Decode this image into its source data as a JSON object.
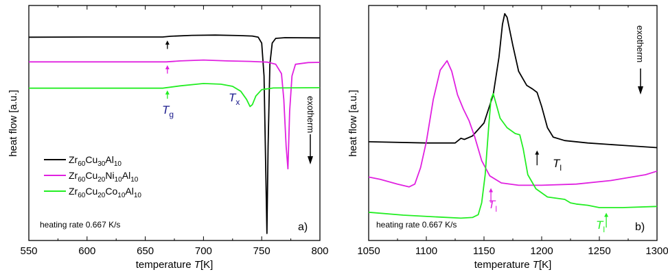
{
  "chart_data": [
    {
      "type": "line",
      "panel_label": "a)",
      "xlabel": "temperature T[K]",
      "ylabel": "heat flow [a.u.]",
      "xlim": [
        550,
        800
      ],
      "xticks": [
        "550",
        "600",
        "650",
        "700",
        "750",
        "800"
      ],
      "yticks": "none",
      "ylim": [
        0,
        100
      ],
      "legend_position": "lower-left",
      "annotation_rate": "heating rate 0.667 K/s",
      "label_Tg": "T",
      "label_Tg_sub": "g",
      "label_Tx": "T",
      "label_Tx_sub": "x",
      "exotherm_label": "exotherm",
      "series": [
        {
          "name": "Zr60Cu30Al10",
          "legend": [
            [
              "Zr",
              ""
            ],
            [
              "60",
              "sub"
            ],
            [
              "Cu",
              ""
            ],
            [
              "30",
              "sub"
            ],
            [
              "Al",
              ""
            ],
            [
              "10",
              "sub"
            ]
          ],
          "color": "#000000",
          "points": [
            [
              550,
              86.5
            ],
            [
              600,
              86.6
            ],
            [
              650,
              86.6
            ],
            [
              665,
              86.6
            ],
            [
              672,
              86.9
            ],
            [
              690,
              87.3
            ],
            [
              710,
              87.4
            ],
            [
              730,
              87.2
            ],
            [
              742,
              87.0
            ],
            [
              747,
              86.5
            ],
            [
              750,
              84.0
            ],
            [
              752,
              70.0
            ],
            [
              753.5,
              30.0
            ],
            [
              754.5,
              3.0
            ],
            [
              755.5,
              40.0
            ],
            [
              757,
              75.0
            ],
            [
              759,
              84.0
            ],
            [
              762,
              86.0
            ],
            [
              770,
              86.3
            ],
            [
              800,
              86.2
            ]
          ]
        },
        {
          "name": "Zr60Cu20Ni10Al10",
          "legend": [
            [
              "Zr",
              ""
            ],
            [
              "60",
              "sub"
            ],
            [
              "Cu",
              ""
            ],
            [
              "20",
              "sub"
            ],
            [
              "Ni",
              ""
            ],
            [
              "10",
              "sub"
            ],
            [
              "Al",
              ""
            ],
            [
              "10",
              "sub"
            ]
          ],
          "color": "#e020e0",
          "points": [
            [
              550,
              76.0
            ],
            [
              600,
              76.0
            ],
            [
              650,
              76.0
            ],
            [
              668,
              76.0
            ],
            [
              680,
              76.4
            ],
            [
              700,
              76.8
            ],
            [
              720,
              76.4
            ],
            [
              740,
              76.2
            ],
            [
              755,
              75.9
            ],
            [
              762,
              75.0
            ],
            [
              767,
              71.0
            ],
            [
              769,
              60.0
            ],
            [
              771,
              40.0
            ],
            [
              772.5,
              30.5
            ],
            [
              774,
              55.0
            ],
            [
              776,
              70.0
            ],
            [
              779,
              75.0
            ],
            [
              790,
              75.7
            ],
            [
              800,
              75.8
            ]
          ]
        },
        {
          "name": "Zr60Cu20Co10Al10",
          "legend": [
            [
              "Zr",
              ""
            ],
            [
              "60",
              "sub"
            ],
            [
              "Cu",
              ""
            ],
            [
              "20",
              "sub"
            ],
            [
              "Co",
              ""
            ],
            [
              "10",
              "sub"
            ],
            [
              "Al",
              ""
            ],
            [
              "10",
              "sub"
            ]
          ],
          "color": "#22ee22",
          "points": [
            [
              550,
              64.8
            ],
            [
              600,
              64.8
            ],
            [
              650,
              64.8
            ],
            [
              665,
              64.8
            ],
            [
              680,
              65.8
            ],
            [
              700,
              66.8
            ],
            [
              715,
              66.5
            ],
            [
              725,
              65.6
            ],
            [
              732,
              63.5
            ],
            [
              737,
              60.0
            ],
            [
              740,
              57.0
            ],
            [
              742,
              57.8
            ],
            [
              745,
              61.5
            ],
            [
              750,
              64.2
            ],
            [
              760,
              64.9
            ],
            [
              800,
              65.0
            ]
          ]
        }
      ],
      "markers": [
        {
          "x": 669,
          "y0": 81.5,
          "y1": 84.8,
          "color": "#000000"
        },
        {
          "x": 669,
          "y0": 71.0,
          "y1": 74.3,
          "color": "#e020e0"
        },
        {
          "x": 669,
          "y0": 60.3,
          "y1": 63.6,
          "color": "#22ee22"
        }
      ]
    },
    {
      "type": "line",
      "panel_label": "b)",
      "xlabel": "temperature T[K]",
      "ylabel": "heat flow [a.u.]",
      "xlim": [
        1050,
        1300
      ],
      "xticks": [
        "1050",
        "1100",
        "1150",
        "1200",
        "1250",
        "1300"
      ],
      "yticks": "none",
      "ylim": [
        0,
        100
      ],
      "annotation_rate": "heating rate 0.667 K/s",
      "label_Tl": "T",
      "label_Tl_sub": "l",
      "exotherm_label": "exotherm",
      "series": [
        {
          "name": "Zr60Cu30Al10",
          "color": "#000000",
          "points": [
            [
              1050,
              42.0
            ],
            [
              1100,
              41.5
            ],
            [
              1125,
              41.5
            ],
            [
              1130,
              43.5
            ],
            [
              1133,
              43.0
            ],
            [
              1140,
              44.5
            ],
            [
              1150,
              50.0
            ],
            [
              1158,
              62.0
            ],
            [
              1163,
              78.0
            ],
            [
              1166,
              92.0
            ],
            [
              1168,
              96.5
            ],
            [
              1170,
              95.0
            ],
            [
              1175,
              83.0
            ],
            [
              1180,
              72.0
            ],
            [
              1187,
              66.0
            ],
            [
              1192,
              64.5
            ],
            [
              1196,
              63.0
            ],
            [
              1200,
              57.0
            ],
            [
              1205,
              48.0
            ],
            [
              1210,
              44.0
            ],
            [
              1220,
              42.5
            ],
            [
              1240,
              41.5
            ],
            [
              1270,
              40.5
            ],
            [
              1300,
              39.5
            ]
          ]
        },
        {
          "name": "Zr60Cu20Ni10Al10",
          "color": "#e020e0",
          "points": [
            [
              1050,
              27.0
            ],
            [
              1060,
              26.0
            ],
            [
              1075,
              24.0
            ],
            [
              1085,
              22.8
            ],
            [
              1090,
              24.0
            ],
            [
              1095,
              31.0
            ],
            [
              1100,
              42.0
            ],
            [
              1106,
              60.0
            ],
            [
              1112,
              72.5
            ],
            [
              1118,
              76.5
            ],
            [
              1122,
              72.0
            ],
            [
              1127,
              62.0
            ],
            [
              1132,
              56.0
            ],
            [
              1137,
              51.0
            ],
            [
              1142,
              44.0
            ],
            [
              1148,
              34.0
            ],
            [
              1155,
              27.5
            ],
            [
              1165,
              24.5
            ],
            [
              1180,
              23.5
            ],
            [
              1200,
              23.5
            ],
            [
              1230,
              24.0
            ],
            [
              1260,
              25.5
            ],
            [
              1290,
              28.0
            ],
            [
              1300,
              29.5
            ]
          ]
        },
        {
          "name": "Zr60Cu20Co10Al10",
          "color": "#22ee22",
          "points": [
            [
              1050,
              12.0
            ],
            [
              1080,
              10.8
            ],
            [
              1110,
              10.0
            ],
            [
              1130,
              9.5
            ],
            [
              1140,
              9.8
            ],
            [
              1145,
              11.0
            ],
            [
              1148,
              16.0
            ],
            [
              1151,
              28.0
            ],
            [
              1154,
              48.0
            ],
            [
              1156,
              60.0
            ],
            [
              1158,
              62.5
            ],
            [
              1160,
              59.0
            ],
            [
              1164,
              52.0
            ],
            [
              1170,
              48.0
            ],
            [
              1177,
              45.5
            ],
            [
              1181,
              45.0
            ],
            [
              1184,
              39.0
            ],
            [
              1188,
              28.0
            ],
            [
              1195,
              22.0
            ],
            [
              1205,
              18.5
            ],
            [
              1220,
              17.5
            ],
            [
              1225,
              16.0
            ],
            [
              1230,
              15.5
            ],
            [
              1240,
              15.0
            ],
            [
              1250,
              14.0
            ],
            [
              1270,
              14.0
            ],
            [
              1300,
              14.5
            ]
          ]
        }
      ],
      "markers": [
        {
          "x": 1196,
          "y0": 32.0,
          "y1": 38.0,
          "color": "#000000"
        },
        {
          "x": 1156,
          "y0": 16.0,
          "y1": 22.0,
          "color": "#e020e0"
        },
        {
          "x": 1256,
          "y0": 5.5,
          "y1": 11.5,
          "color": "#22ee22"
        }
      ]
    }
  ]
}
